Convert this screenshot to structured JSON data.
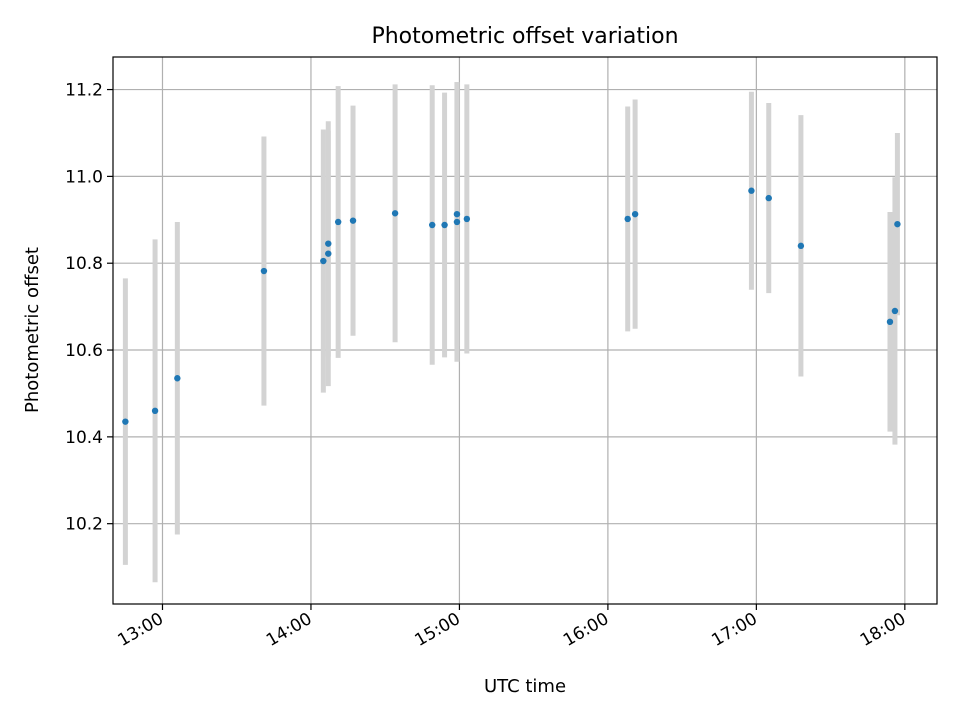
{
  "chart_data": {
    "type": "scatter",
    "title": "Photometric offset variation",
    "xlabel": "UTC time",
    "ylabel": "Photometric offset",
    "x_ticks": [
      "13:00",
      "14:00",
      "15:00",
      "16:00",
      "17:00",
      "18:00"
    ],
    "y_ticks": [
      "10.2",
      "10.4",
      "10.6",
      "10.8",
      "11.0",
      "11.2"
    ],
    "xlim": [
      "12:40",
      "18:13"
    ],
    "ylim": [
      10.015,
      11.275
    ],
    "grid": true,
    "colors": {
      "point": "#1f77b4",
      "errorbar": "#d3d3d3",
      "grid": "#b0b0b0"
    },
    "points": [
      {
        "x": "12:45",
        "y": 10.435,
        "y_err": 0.33
      },
      {
        "x": "12:57",
        "y": 10.46,
        "y_err": 0.395
      },
      {
        "x": "13:06",
        "y": 10.535,
        "y_err": 0.36
      },
      {
        "x": "13:41",
        "y": 10.782,
        "y_err": 0.31
      },
      {
        "x": "14:05",
        "y": 10.805,
        "y_err": 0.303
      },
      {
        "x": "14:07",
        "y": 10.845,
        "y_err": 0.26
      },
      {
        "x": "14:07",
        "y": 10.822,
        "y_err": 0.305
      },
      {
        "x": "14:11",
        "y": 10.895,
        "y_err": 0.313
      },
      {
        "x": "14:17",
        "y": 10.898,
        "y_err": 0.265
      },
      {
        "x": "14:34",
        "y": 10.915,
        "y_err": 0.297
      },
      {
        "x": "14:49",
        "y": 10.888,
        "y_err": 0.322
      },
      {
        "x": "14:54",
        "y": 10.888,
        "y_err": 0.305
      },
      {
        "x": "14:59",
        "y": 10.913,
        "y_err": 0.304
      },
      {
        "x": "14:59",
        "y": 10.895,
        "y_err": 0.322
      },
      {
        "x": "15:03",
        "y": 10.902,
        "y_err": 0.31
      },
      {
        "x": "16:08",
        "y": 10.902,
        "y_err": 0.259
      },
      {
        "x": "16:11",
        "y": 10.913,
        "y_err": 0.264
      },
      {
        "x": "16:58",
        "y": 10.967,
        "y_err": 0.228
      },
      {
        "x": "17:05",
        "y": 10.95,
        "y_err": 0.219
      },
      {
        "x": "17:18",
        "y": 10.84,
        "y_err": 0.301
      },
      {
        "x": "17:54",
        "y": 10.665,
        "y_err": 0.253
      },
      {
        "x": "17:56",
        "y": 10.69,
        "y_err": 0.308
      },
      {
        "x": "17:57",
        "y": 10.89,
        "y_err": 0.21
      }
    ]
  }
}
